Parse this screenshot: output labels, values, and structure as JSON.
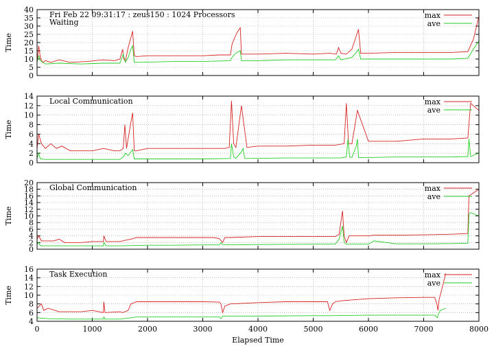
{
  "figure": {
    "xlabel": "Elapsed Time"
  },
  "chart_data": [
    {
      "type": "line",
      "title": "Fri Feb 22 09:31:17 : zeus150 : 1024 Processors",
      "subtitle": "Waiting",
      "ylabel": "Time",
      "xlim": [
        0,
        8000
      ],
      "ylim": [
        0,
        40
      ],
      "yticks": [
        0,
        5,
        10,
        15,
        20,
        25,
        30,
        35,
        40
      ],
      "xticks": [
        0,
        1000,
        2000,
        3000,
        4000,
        5000,
        6000,
        7000,
        8000
      ],
      "show_xtick_labels": false,
      "grid": true,
      "legend": "top-right",
      "series": [
        {
          "name": "max",
          "color": "#d62020",
          "x": [
            0,
            30,
            60,
            100,
            150,
            250,
            400,
            600,
            900,
            1200,
            1400,
            1500,
            1550,
            1570,
            1600,
            1650,
            1700,
            1730,
            1760,
            1800,
            2000,
            2500,
            3000,
            3300,
            3500,
            3530,
            3580,
            3620,
            3680,
            3700,
            3730,
            3760,
            4000,
            4500,
            5000,
            5300,
            5420,
            5460,
            5500,
            5600,
            5700,
            5780,
            5820,
            5860,
            6000,
            6500,
            7000,
            7500,
            7800,
            7900,
            8000
          ],
          "y": [
            8,
            18,
            11,
            8,
            9,
            8,
            9.5,
            8,
            8.5,
            9.5,
            9,
            10,
            16,
            10,
            9,
            17,
            23,
            27,
            12,
            11.5,
            12,
            12,
            12,
            12.5,
            12.5,
            19,
            23,
            26,
            29,
            13,
            13,
            13,
            13,
            13.5,
            13,
            13.5,
            13,
            17,
            13.5,
            13,
            16,
            24,
            28,
            13.5,
            13.5,
            14,
            14,
            14,
            14.5,
            22,
            36
          ]
        },
        {
          "name": "ave",
          "color": "#22cc22",
          "x": [
            0,
            30,
            60,
            100,
            150,
            400,
            800,
            1200,
            1500,
            1560,
            1600,
            1650,
            1700,
            1730,
            1760,
            1800,
            2500,
            3000,
            3500,
            3530,
            3580,
            3620,
            3680,
            3700,
            3730,
            4000,
            4500,
            5000,
            5400,
            5460,
            5500,
            5700,
            5780,
            5820,
            5860,
            6000,
            6500,
            7000,
            7500,
            7800,
            7900,
            8000
          ],
          "y": [
            8,
            12,
            9,
            8,
            7,
            7.5,
            7,
            7.5,
            7.5,
            13,
            8,
            11,
            16,
            18,
            8,
            8,
            8.5,
            8.5,
            9,
            11,
            13,
            14,
            15,
            9,
            9,
            9,
            9.5,
            9.5,
            9.5,
            12,
            9.5,
            11,
            14,
            16,
            10,
            10,
            10,
            10,
            10,
            10.5,
            16,
            21
          ]
        }
      ]
    },
    {
      "type": "line",
      "title": "Local Communication",
      "ylabel": "Time",
      "xlim": [
        0,
        8000
      ],
      "ylim": [
        0,
        14
      ],
      "yticks": [
        0,
        2,
        4,
        6,
        8,
        10,
        12,
        14
      ],
      "xticks": [
        0,
        1000,
        2000,
        3000,
        4000,
        5000,
        6000,
        7000,
        8000
      ],
      "show_xtick_labels": false,
      "grid": true,
      "legend": "top-right",
      "series": [
        {
          "name": "max",
          "color": "#d62020",
          "x": [
            0,
            30,
            80,
            150,
            250,
            350,
            450,
            600,
            800,
            1000,
            1200,
            1400,
            1500,
            1560,
            1590,
            1620,
            1700,
            1730,
            1760,
            1800,
            2000,
            2500,
            3000,
            3400,
            3480,
            3520,
            3560,
            3600,
            3700,
            3800,
            4000,
            4500,
            5000,
            5400,
            5560,
            5600,
            5640,
            5700,
            5800,
            6000,
            6500,
            7000,
            7500,
            7800,
            7850,
            8000
          ],
          "y": [
            3,
            6,
            4,
            3,
            4,
            3,
            3.5,
            2.5,
            2.5,
            2.5,
            3,
            2.5,
            2.5,
            3,
            8,
            3,
            8.5,
            10.5,
            2.5,
            2.5,
            3,
            3,
            3,
            3,
            3.2,
            13,
            4,
            3.2,
            12,
            3.2,
            3.5,
            3.5,
            3.7,
            3.7,
            4,
            12.5,
            4,
            4,
            11,
            4.5,
            4.5,
            5,
            5,
            5.2,
            12.5,
            11
          ]
        },
        {
          "name": "ave",
          "color": "#22cc22",
          "x": [
            0,
            30,
            60,
            150,
            500,
            1000,
            1500,
            1560,
            1600,
            1650,
            1700,
            1730,
            1760,
            1800,
            2500,
            3000,
            3500,
            3520,
            3560,
            3600,
            3700,
            3730,
            3760,
            3800,
            4500,
            5000,
            5500,
            5600,
            5630,
            5660,
            5700,
            5780,
            5800,
            5820,
            6000,
            6500,
            7000,
            7500,
            7800,
            7820,
            7850,
            8000
          ],
          "y": [
            1,
            2,
            0.8,
            0.7,
            0.7,
            0.7,
            0.7,
            1.2,
            2,
            1.5,
            2.3,
            2.8,
            0.8,
            0.8,
            0.8,
            0.8,
            0.9,
            4,
            1.2,
            0.9,
            2.3,
            3,
            0.9,
            0.9,
            1,
            1,
            1,
            1.2,
            5,
            1.2,
            1.1,
            3.5,
            5,
            1.1,
            1.1,
            1.2,
            1.2,
            1.2,
            1.3,
            5,
            1.3,
            2
          ]
        }
      ]
    },
    {
      "type": "line",
      "title": "Global Communication",
      "ylabel": "Time",
      "xlim": [
        0,
        8000
      ],
      "ylim": [
        0,
        20
      ],
      "yticks": [
        0,
        2,
        4,
        6,
        8,
        10,
        12,
        14,
        16,
        18,
        20
      ],
      "xticks": [
        0,
        1000,
        2000,
        3000,
        4000,
        5000,
        6000,
        7000,
        8000
      ],
      "show_xtick_labels": false,
      "grid": true,
      "legend": "top-right",
      "series": [
        {
          "name": "max",
          "color": "#d62020",
          "x": [
            0,
            30,
            80,
            150,
            300,
            400,
            500,
            800,
            1000,
            1200,
            1210,
            1250,
            1500,
            1600,
            1700,
            1800,
            2000,
            2500,
            3000,
            3200,
            3300,
            3360,
            3400,
            3500,
            4000,
            4500,
            5000,
            5300,
            5400,
            5470,
            5530,
            5560,
            5600,
            5650,
            6000,
            6100,
            6500,
            7000,
            7500,
            7800,
            7820,
            8000
          ],
          "y": [
            3,
            4,
            2.5,
            2.5,
            2.5,
            3,
            2,
            2,
            2.3,
            2.3,
            4,
            2.3,
            2.3,
            2.7,
            3,
            3.5,
            3.5,
            3.5,
            3.5,
            3.5,
            3.2,
            2,
            3.5,
            3.5,
            3.8,
            3.8,
            3.8,
            3.8,
            3.8,
            4.5,
            11.5,
            4,
            2,
            4,
            4,
            4.2,
            4.2,
            4.3,
            4.5,
            4.7,
            16,
            18
          ]
        },
        {
          "name": "ave",
          "color": "#22cc22",
          "x": [
            0,
            30,
            60,
            150,
            500,
            1000,
            1200,
            1210,
            1250,
            1500,
            2000,
            2500,
            3000,
            3300,
            3330,
            3360,
            3500,
            4000,
            5000,
            5400,
            5470,
            5530,
            5560,
            5600,
            5650,
            6000,
            6100,
            6500,
            7000,
            7500,
            7800,
            7820,
            7850,
            8000
          ],
          "y": [
            1.5,
            2,
            1,
            1,
            1,
            1,
            1,
            2,
            1,
            1,
            1.2,
            1.2,
            1.3,
            1.3,
            2,
            1.4,
            1.3,
            1.4,
            1.5,
            1.5,
            3,
            7,
            2,
            1.5,
            1.5,
            1.5,
            2.5,
            1.6,
            1.6,
            1.7,
            1.8,
            10.5,
            11,
            10
          ]
        }
      ]
    },
    {
      "type": "line",
      "title": "Task Execution",
      "ylabel": "Time",
      "xlabel": "Elapsed Time",
      "xlim": [
        0,
        8000
      ],
      "ylim": [
        4,
        16
      ],
      "yticks": [
        4,
        6,
        8,
        10,
        12,
        14,
        16
      ],
      "xticks": [
        0,
        1000,
        2000,
        3000,
        4000,
        5000,
        6000,
        7000,
        8000
      ],
      "show_xtick_labels": true,
      "grid": true,
      "legend": "top-right",
      "series": [
        {
          "name": "max",
          "color": "#d62020",
          "x": [
            0,
            80,
            120,
            200,
            400,
            600,
            800,
            1000,
            1200,
            1210,
            1230,
            1500,
            1550,
            1650,
            1700,
            1800,
            2000,
            2500,
            3000,
            3300,
            3330,
            3360,
            3400,
            3500,
            4000,
            4500,
            5000,
            5200,
            5260,
            5300,
            5350,
            5400,
            5500,
            6000,
            6500,
            7000,
            7200,
            7240,
            7260,
            7280,
            7320,
            7400
          ],
          "y": [
            7,
            8,
            6.5,
            7,
            6.2,
            6.2,
            6.2,
            6.5,
            6,
            8.5,
            6,
            6.2,
            6,
            6.5,
            8,
            8.5,
            8.5,
            8.5,
            8.5,
            8.4,
            8,
            6,
            7.5,
            8,
            8.3,
            8.5,
            8.5,
            8.5,
            8.5,
            6.5,
            8,
            8.5,
            8.7,
            9.2,
            9.4,
            9.5,
            9.5,
            8,
            6.5,
            9,
            11,
            15
          ]
        },
        {
          "name": "ave",
          "color": "#22cc22",
          "x": [
            0,
            200,
            600,
            1000,
            1200,
            1210,
            1230,
            1500,
            1700,
            1800,
            2000,
            3000,
            3300,
            3330,
            3360,
            4000,
            5000,
            5300,
            6000,
            7000,
            7200,
            7250,
            7260,
            7300,
            7400
          ],
          "y": [
            4.8,
            4.6,
            4.5,
            4.5,
            4.5,
            5,
            4.5,
            4.5,
            4.8,
            5,
            5,
            5,
            5,
            4.6,
            5.2,
            5.2,
            5.3,
            5.3,
            5.4,
            5.4,
            5.4,
            4.8,
            5.4,
            6.5,
            7
          ]
        }
      ]
    }
  ]
}
